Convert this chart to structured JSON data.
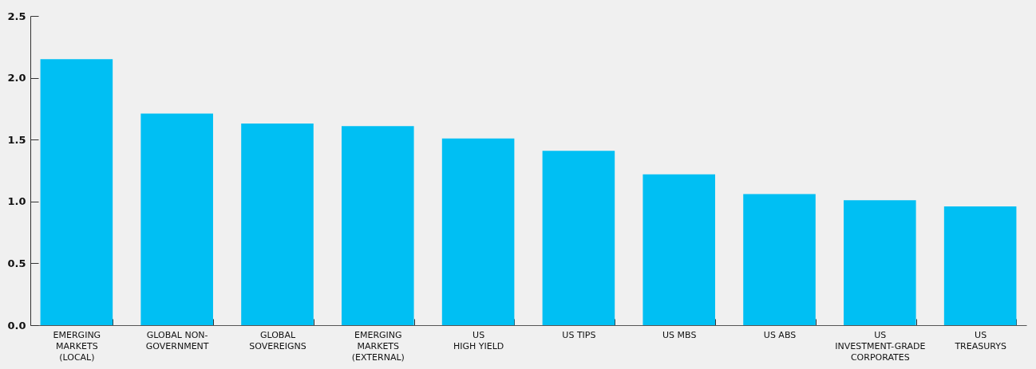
{
  "chart_data": {
    "type": "bar",
    "categories": [
      "EMERGING\nMARKETS\n(LOCAL)",
      "GLOBAL NON-\nGOVERNMENT",
      "GLOBAL\nSOVEREIGNS",
      "EMERGING\nMARKETS\n(EXTERNAL)",
      "US\nHIGH YIELD",
      "US TIPS",
      "US MBS",
      "US ABS",
      "US\nINVESTMENT-GRADE\nCORPORATES",
      "US\nTREASURYS"
    ],
    "values": [
      2.15,
      1.71,
      1.63,
      1.61,
      1.51,
      1.41,
      1.22,
      1.06,
      1.01,
      0.96
    ],
    "color": "#00bff3",
    "ylim": [
      0,
      2.5
    ],
    "yticks": [
      {
        "value": 0,
        "label": "0.0"
      },
      0.5,
      {
        "value": 1,
        "label": "1.0"
      },
      1.5,
      {
        "value": 2,
        "label": "2.0"
      },
      2.5
    ],
    "grid": false
  }
}
